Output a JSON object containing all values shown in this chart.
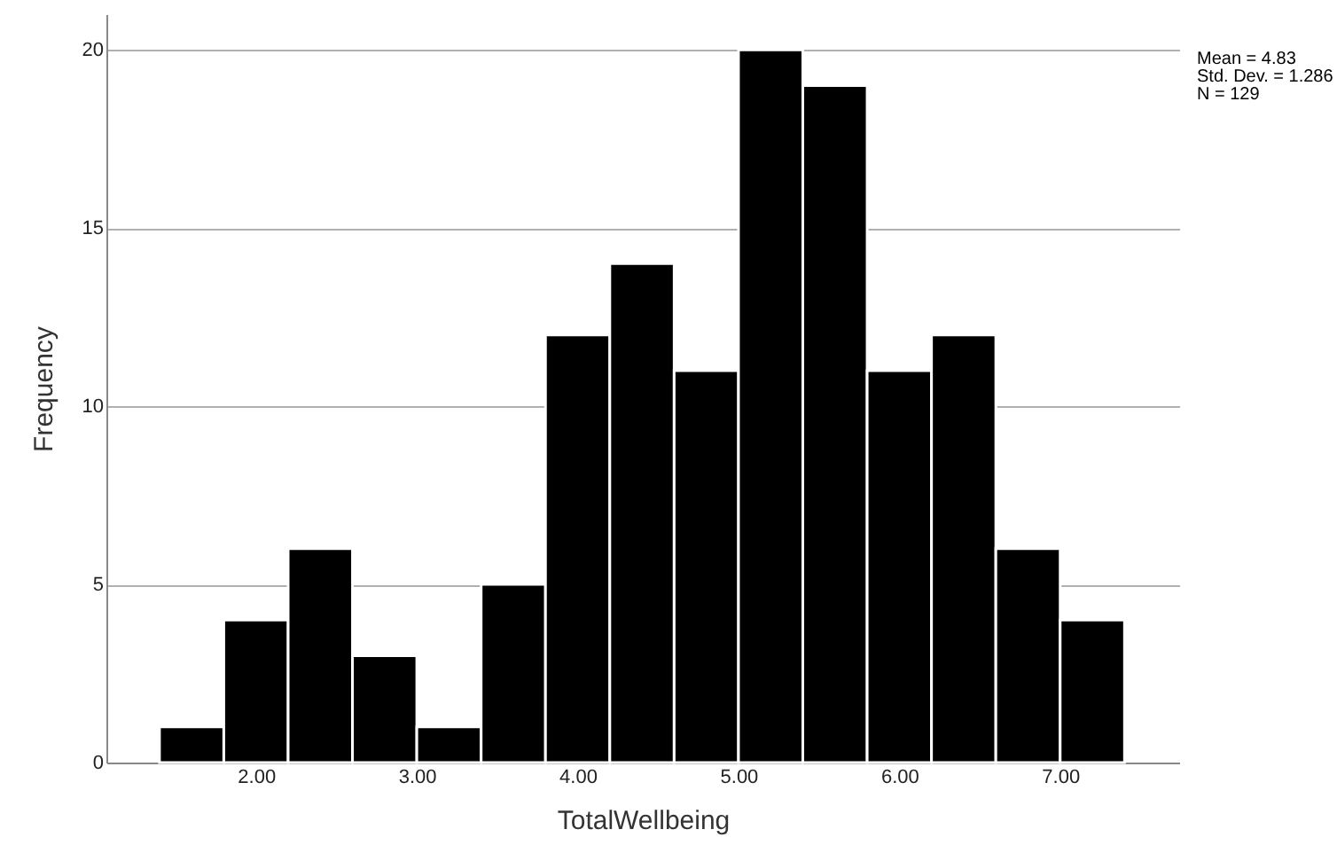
{
  "chart_data": {
    "type": "histogram",
    "xlabel": "TotalWellbeing",
    "ylabel": "Frequency",
    "bins": [
      1.4,
      1.8,
      2.2,
      2.6,
      3.0,
      3.4,
      3.8,
      4.2,
      4.6,
      5.0,
      5.4,
      5.8,
      6.2,
      6.6,
      7.0,
      7.4
    ],
    "values": [
      1,
      4,
      6,
      3,
      1,
      5,
      12,
      14,
      11,
      20,
      19,
      11,
      12,
      6,
      4
    ],
    "color": "#000000",
    "xlim": [
      1.07,
      7.74
    ],
    "xticks": [
      {
        "value": 2,
        "label": "2.00"
      },
      {
        "value": 3,
        "label": "3.00"
      },
      {
        "value": 4,
        "label": "4.00"
      },
      {
        "value": 5,
        "label": "5.00"
      },
      {
        "value": 6,
        "label": "6.00"
      },
      {
        "value": 7,
        "label": "7.00"
      }
    ],
    "ylim": [
      0,
      21
    ],
    "yticks": [
      0,
      5,
      10,
      15,
      20
    ],
    "grid": "y",
    "annotations": [
      "Mean = 4.83",
      "Std. Dev. = 1.286",
      "N = 129"
    ]
  }
}
